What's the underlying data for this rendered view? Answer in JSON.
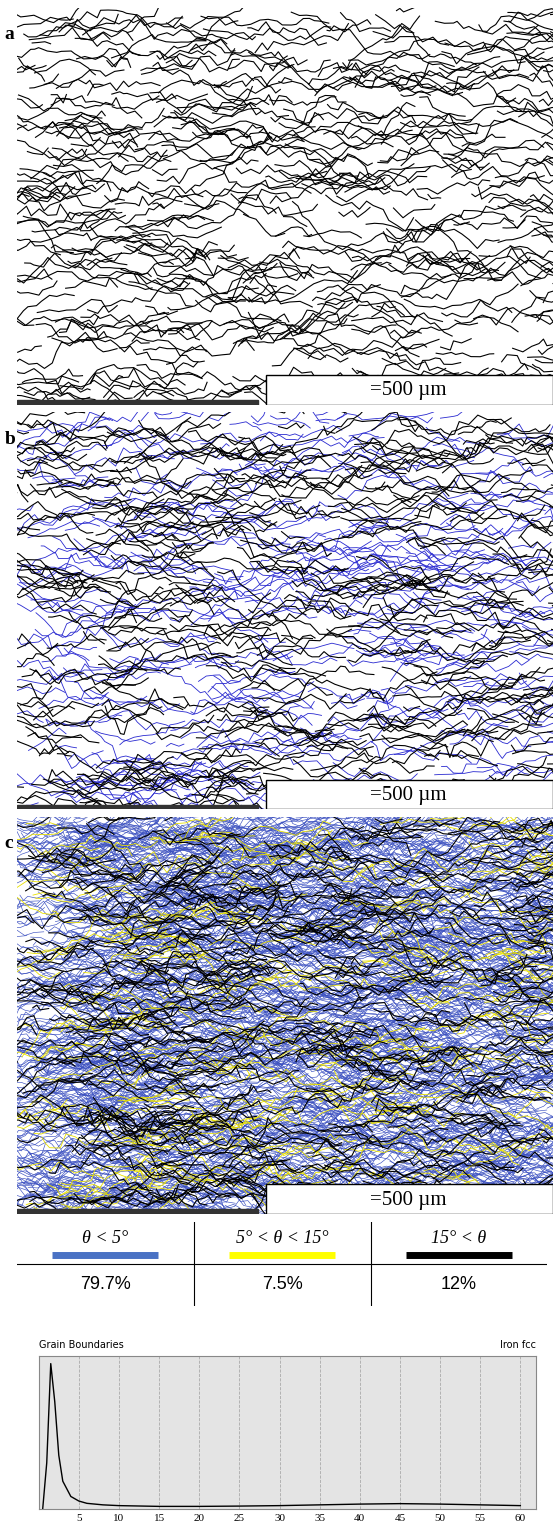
{
  "panels": [
    {
      "label": "a",
      "scale_bar": "=500 µm",
      "boundary_colors": [
        "#000000"
      ]
    },
    {
      "label": "b",
      "scale_bar": "=500 µm",
      "boundary_colors": [
        "#2a2ad0",
        "#000000"
      ]
    },
    {
      "label": "c",
      "scale_bar": "=500 µm",
      "boundary_colors": [
        "#3a4fc0",
        "#e8e000",
        "#000000"
      ]
    }
  ],
  "table": {
    "header": [
      "θ < 5°",
      "5° < θ < 15°",
      "15° < θ"
    ],
    "colors": [
      "#4a72c4",
      "#ffff00",
      "#000000"
    ],
    "rows": [
      [
        "79.7%",
        "7.5%",
        "12%"
      ]
    ]
  },
  "chart_data": {
    "type": "line",
    "title": "Grain Boundaries",
    "subtitle": "Iron fcc",
    "x": [
      0.5,
      1,
      1.5,
      2,
      2.5,
      3,
      4,
      5,
      6,
      8,
      10,
      15,
      20,
      25,
      30,
      35,
      40,
      45,
      50,
      55,
      60
    ],
    "values": [
      0.0,
      0.3,
      0.95,
      0.7,
      0.35,
      0.18,
      0.08,
      0.05,
      0.035,
      0.025,
      0.02,
      0.015,
      0.015,
      0.017,
      0.02,
      0.025,
      0.03,
      0.033,
      0.03,
      0.025,
      0.02
    ],
    "color": "#000000",
    "xlim": [
      0,
      62
    ],
    "xticks": [
      5,
      10,
      15,
      20,
      25,
      30,
      35,
      40,
      45,
      50,
      55,
      60
    ],
    "ylim": [
      0,
      1
    ],
    "tick_labels": "x",
    "grid": true
  }
}
